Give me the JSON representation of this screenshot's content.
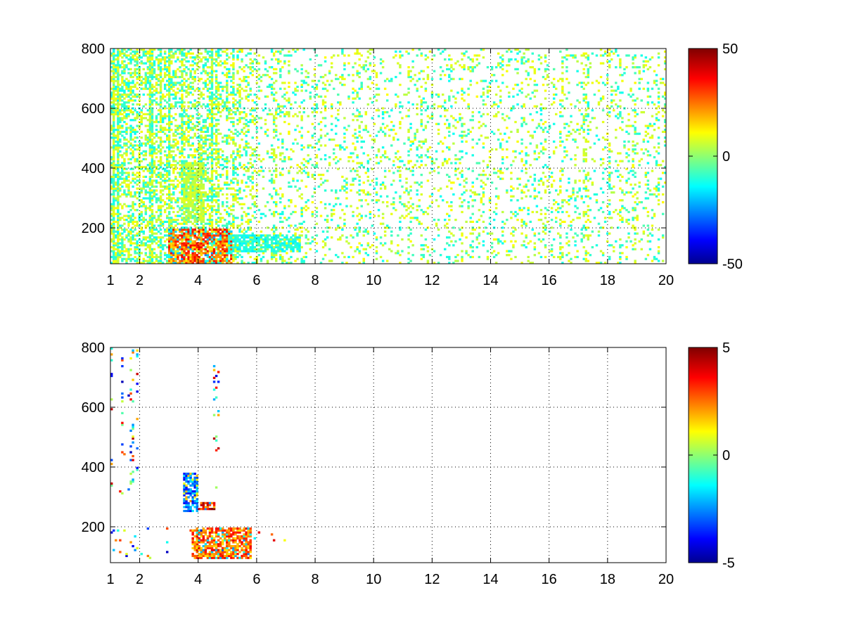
{
  "chart_data": [
    {
      "type": "heatmap",
      "title": "",
      "xlabel": "",
      "ylabel": "",
      "xlim": [
        1,
        20
      ],
      "ylim": [
        80,
        800
      ],
      "grid": true,
      "x_ticks": [
        "1",
        "2",
        "4",
        "6",
        "8",
        "10",
        "12",
        "14",
        "16",
        "18",
        "20"
      ],
      "x_tick_values": [
        1,
        2,
        4,
        6,
        8,
        10,
        12,
        14,
        16,
        18,
        20
      ],
      "y_ticks": [
        "200",
        "400",
        "600",
        "800"
      ],
      "y_tick_values": [
        200,
        400,
        600,
        800
      ],
      "colorbar": {
        "colormap": "jet",
        "min": -50,
        "max": 50,
        "ticks": [
          "50",
          "0",
          "-50"
        ],
        "tick_values": [
          50,
          0,
          -50
        ]
      },
      "hotspots": [
        {
          "x": [
            3.0,
            5.2
          ],
          "y": [
            80,
            200
          ],
          "value": 40
        },
        {
          "x": [
            3.5,
            4.2
          ],
          "y": [
            220,
            420
          ],
          "value": 10
        },
        {
          "x": [
            5.0,
            7.5
          ],
          "y": [
            120,
            180
          ],
          "value": -15
        }
      ]
    },
    {
      "type": "heatmap",
      "title": "",
      "xlabel": "",
      "ylabel": "",
      "xlim": [
        1,
        20
      ],
      "ylim": [
        80,
        800
      ],
      "grid": true,
      "x_ticks": [
        "1",
        "2",
        "4",
        "6",
        "8",
        "10",
        "12",
        "14",
        "16",
        "18",
        "20"
      ],
      "x_tick_values": [
        1,
        2,
        4,
        6,
        8,
        10,
        12,
        14,
        16,
        18,
        20
      ],
      "y_ticks": [
        "200",
        "400",
        "600",
        "800"
      ],
      "y_tick_values": [
        200,
        400,
        600,
        800
      ],
      "colorbar": {
        "colormap": "jet",
        "min": -5,
        "max": 5,
        "ticks": [
          "5",
          "0",
          "-5"
        ],
        "tick_values": [
          5,
          0,
          -5
        ]
      },
      "hotspots": [
        {
          "x": [
            3.8,
            5.8
          ],
          "y": [
            90,
            200
          ],
          "value": 4
        },
        {
          "x": [
            3.5,
            4.0
          ],
          "y": [
            250,
            380
          ],
          "value": -4
        },
        {
          "x": [
            4.0,
            4.6
          ],
          "y": [
            260,
            280
          ],
          "value": 5
        }
      ]
    }
  ]
}
